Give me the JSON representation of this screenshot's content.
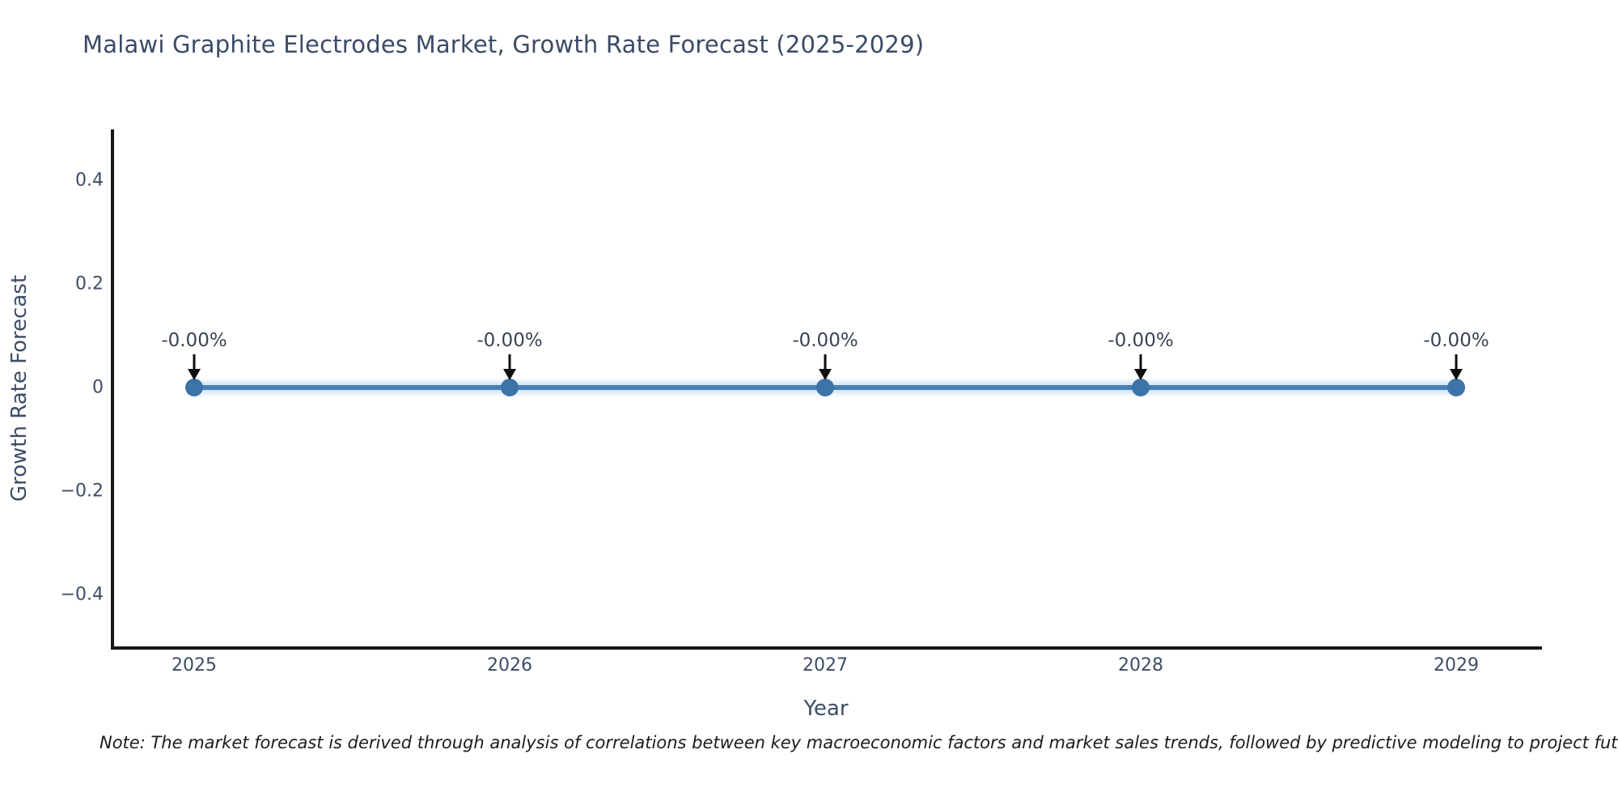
{
  "chart_data": {
    "type": "line",
    "title": "Malawi Graphite Electrodes Market, Growth Rate Forecast (2025-2029)",
    "xlabel": "Year",
    "ylabel": "Growth Rate Forecast",
    "x": [
      "2025",
      "2026",
      "2027",
      "2028",
      "2029"
    ],
    "series": [
      {
        "name": "Growth Rate Forecast",
        "values": [
          0,
          0,
          0,
          0,
          0
        ]
      }
    ],
    "point_labels": [
      "-0.00%",
      "-0.00%",
      "-0.00%",
      "-0.00%",
      "-0.00%"
    ],
    "ytick_labels": [
      "0.4",
      "0.2",
      "0",
      "−0.2",
      "−0.4"
    ],
    "yticks": [
      0.4,
      0.2,
      0,
      -0.2,
      -0.4
    ],
    "ylim": [
      -0.5,
      0.5
    ],
    "grid": false,
    "legend": false,
    "line_color": "#4a80b3",
    "marker_color": "#3c73a8",
    "annotation_arrow_color": "#0d0d0d",
    "axis_color": "#161616",
    "text_color": "#3d4d66",
    "title_color": "#3b4a66"
  },
  "note": {
    "text": "Note: The market forecast is derived through analysis of correlations between key macroeconomic factors and market sales trends, followed by predictive modeling to project future sales."
  }
}
